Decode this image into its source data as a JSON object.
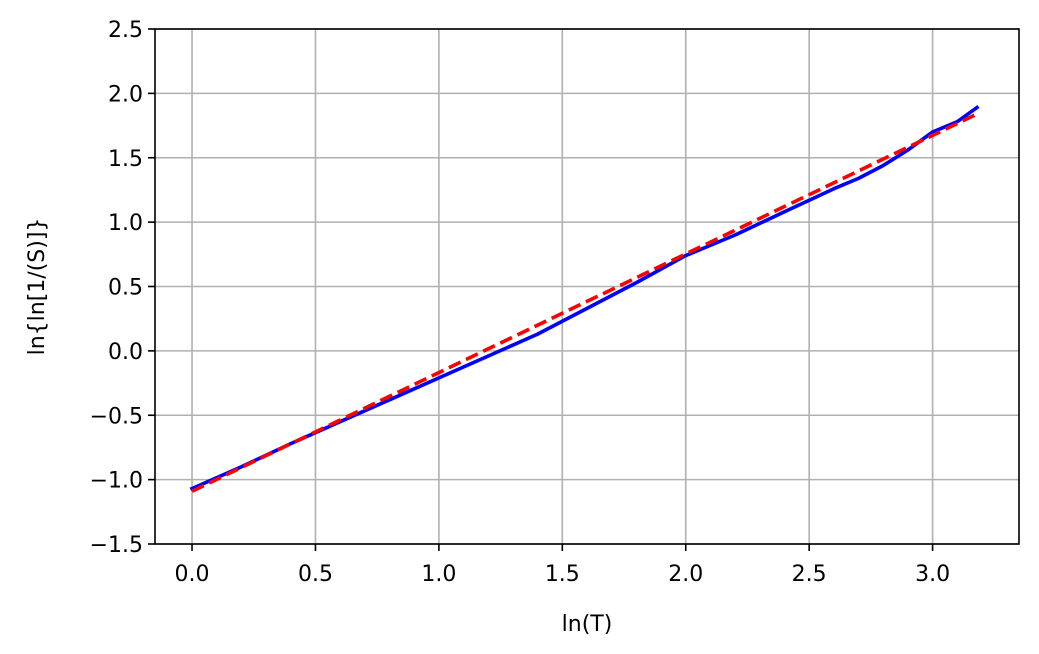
{
  "chart_data": {
    "type": "line",
    "title": "",
    "xlabel": "ln(T)",
    "ylabel": "ln{ln[1/(S)]}",
    "xlim": [
      -0.15,
      3.35
    ],
    "ylim": [
      -1.5,
      2.5
    ],
    "grid": true,
    "legend": "none",
    "x_ticks": [
      0.0,
      0.5,
      1.0,
      1.5,
      2.0,
      2.5,
      3.0
    ],
    "x_tick_labels": [
      "0.0",
      "0.5",
      "1.0",
      "1.5",
      "2.0",
      "2.5",
      "3.0"
    ],
    "y_ticks": [
      -1.5,
      -1.0,
      -0.5,
      0.0,
      0.5,
      1.0,
      1.5,
      2.0,
      2.5
    ],
    "y_tick_labels": [
      "−1.5",
      "−1.0",
      "−0.5",
      "0.0",
      "0.5",
      "1.0",
      "1.5",
      "2.0",
      "2.5"
    ],
    "series": [
      {
        "color": "#0000ff",
        "style": "solid",
        "x": [
          0.0,
          0.2,
          0.4,
          0.6,
          0.8,
          1.0,
          1.2,
          1.4,
          1.6,
          1.8,
          2.0,
          2.2,
          2.4,
          2.6,
          2.7,
          2.8,
          2.9,
          3.0,
          3.1,
          3.18
        ],
        "y": [
          -1.07,
          -0.9,
          -0.72,
          -0.55,
          -0.38,
          -0.21,
          -0.04,
          0.13,
          0.33,
          0.53,
          0.74,
          0.9,
          1.08,
          1.26,
          1.34,
          1.44,
          1.56,
          1.7,
          1.78,
          1.89
        ]
      },
      {
        "color": "#ff0000",
        "style": "dashed",
        "x": [
          0.0,
          3.18
        ],
        "y": [
          -1.09,
          1.84
        ]
      }
    ]
  },
  "colors": {
    "grid": "#b0b0b0",
    "axes": "#000000"
  }
}
